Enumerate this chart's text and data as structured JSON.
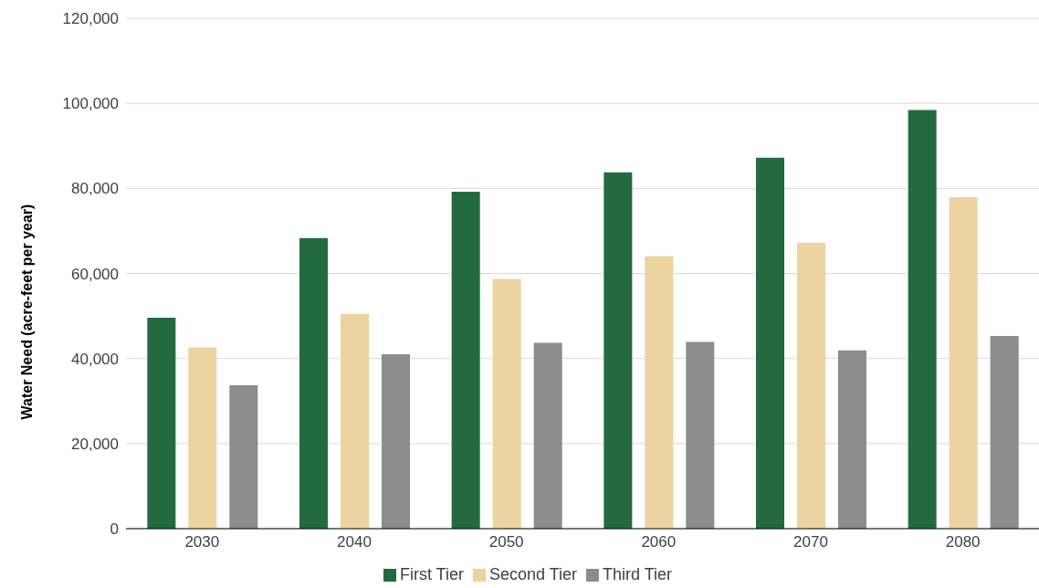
{
  "chart_data": {
    "type": "bar",
    "ylabel": "Water Need (acre-feet per year)",
    "categories": [
      "2030",
      "2040",
      "2050",
      "2060",
      "2070",
      "2080"
    ],
    "series": [
      {
        "name": "First Tier",
        "color": "#236b3f",
        "values": [
          49600,
          68300,
          79200,
          83800,
          87200,
          98400
        ]
      },
      {
        "name": "Second Tier",
        "color": "#ecd3a0",
        "values": [
          42600,
          50500,
          58700,
          64000,
          67200,
          77900
        ]
      },
      {
        "name": "Third Tier",
        "color": "#8c8c8c",
        "values": [
          33700,
          41000,
          43700,
          43900,
          41900,
          45300
        ]
      }
    ],
    "ylim": [
      0,
      120000
    ],
    "yticks": [
      0,
      {
        "value": 20000,
        "label": "20,000"
      },
      {
        "value": 40000,
        "label": "40,000"
      },
      {
        "value": 60000,
        "label": "60,000"
      },
      {
        "value": 80000,
        "label": "80,000"
      },
      {
        "value": 100000,
        "label": "100,000"
      },
      {
        "value": 120000,
        "label": "120,000"
      }
    ],
    "grid": "y",
    "legend": "bottom"
  }
}
